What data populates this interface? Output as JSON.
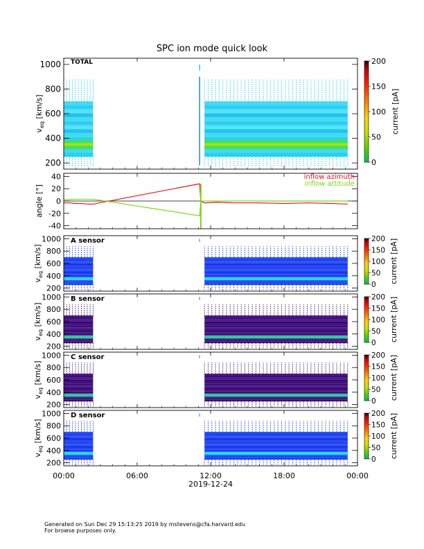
{
  "figure": {
    "title": "SPC ion mode quick look",
    "footer_line1": "Generated on Sun Dec 29 15:13:25 2019 by mstevens@cfa.harvard.edu",
    "footer_line2": "For browse purposes only."
  },
  "chart_data": [
    {
      "type": "heatmap",
      "panel": "TOTAL",
      "label": "TOTAL",
      "ylabel": "v_eq [km/s]",
      "ylim": [
        150,
        1050
      ],
      "yticks": [
        200,
        400,
        600,
        800,
        1000
      ],
      "xlim_hours": [
        0,
        24
      ],
      "colorbar": {
        "label": "current [pA]",
        "range": [
          0,
          200
        ],
        "ticks": [
          0,
          50,
          100,
          150,
          200
        ]
      },
      "background_level": "light blue",
      "beam_velocity": 350,
      "data_intervals": [
        [
          0.0,
          2.4
        ],
        [
          11.5,
          23.2
        ]
      ]
    },
    {
      "type": "line",
      "panel": "angle",
      "ylabel": "angle [°]",
      "ylim": [
        -45,
        45
      ],
      "yticks": [
        -40,
        -20,
        0,
        20,
        40
      ],
      "series": [
        {
          "name": "inflow azimuth",
          "color": "#e8101c",
          "x": [
            0,
            0.5,
            1.0,
            1.5,
            2.0,
            2.4,
            11.1,
            11.2,
            11.5,
            12.5,
            14,
            16,
            18,
            20,
            22,
            23.2
          ],
          "y": [
            -3,
            -3,
            -4,
            -4,
            -5,
            -5,
            28,
            0,
            -3,
            -2,
            -3,
            -3,
            -4,
            -3,
            -4,
            -5
          ]
        },
        {
          "name": "inflow attitude",
          "color": "#7fd40e",
          "x": [
            0,
            1.0,
            2.4,
            11.1,
            11.2,
            11.5,
            14,
            18,
            23.2
          ],
          "y": [
            2,
            3,
            3,
            -24,
            0,
            0,
            0,
            0,
            0
          ]
        }
      ],
      "zero_line": true
    },
    {
      "type": "heatmap",
      "panel": "A sensor",
      "label": "A sensor",
      "ylabel": "v_eq [km/s]",
      "ylim": [
        150,
        1050
      ],
      "yticks": [
        200,
        400,
        600,
        800,
        1000
      ],
      "colorbar": {
        "label": "current [pA]",
        "range": [
          0,
          200
        ],
        "ticks": [
          0,
          50,
          100,
          150,
          200
        ]
      },
      "background_level": "blue",
      "beam_velocity": 350,
      "data_intervals": [
        [
          0.0,
          2.4
        ],
        [
          11.5,
          23.2
        ]
      ]
    },
    {
      "type": "heatmap",
      "panel": "B sensor",
      "label": "B sensor",
      "ylabel": "v_eq [km/s]",
      "ylim": [
        150,
        1050
      ],
      "yticks": [
        200,
        400,
        600,
        800,
        1000
      ],
      "colorbar": {
        "label": "current [pA]",
        "range": [
          0,
          200
        ],
        "ticks": [
          0,
          50,
          100,
          150,
          200
        ]
      },
      "background_level": "dark purple",
      "beam_velocity": 350,
      "data_intervals": [
        [
          0.0,
          2.4
        ],
        [
          11.5,
          23.2
        ]
      ]
    },
    {
      "type": "heatmap",
      "panel": "C sensor",
      "label": "C sensor",
      "ylabel": "v_eq [km/s]",
      "ylim": [
        150,
        1050
      ],
      "yticks": [
        200,
        400,
        600,
        800,
        1000
      ],
      "colorbar": {
        "label": "current [pA]",
        "range": [
          0,
          200
        ],
        "ticks": [
          0,
          50,
          100,
          150,
          200
        ]
      },
      "background_level": "dark purple",
      "beam_velocity": 350,
      "data_intervals": [
        [
          0.0,
          2.4
        ],
        [
          11.5,
          23.2
        ]
      ]
    },
    {
      "type": "heatmap",
      "panel": "D sensor",
      "label": "D sensor",
      "ylabel": "v_eq [km/s]",
      "ylim": [
        150,
        1050
      ],
      "yticks": [
        200,
        400,
        600,
        800,
        1000
      ],
      "colorbar": {
        "label": "current [pA]",
        "range": [
          0,
          200
        ],
        "ticks": [
          0,
          50,
          100,
          150,
          200
        ]
      },
      "background_level": "blue",
      "beam_velocity": 350,
      "data_intervals": [
        [
          0.0,
          2.4
        ],
        [
          11.5,
          23.2
        ]
      ]
    }
  ],
  "xaxis": {
    "tick_labels": [
      "00:00",
      "06:00",
      "12:00",
      "18:00",
      "00:00"
    ],
    "tick_hours": [
      0,
      6,
      12,
      18,
      24
    ],
    "date_label": "2019-12-24"
  }
}
